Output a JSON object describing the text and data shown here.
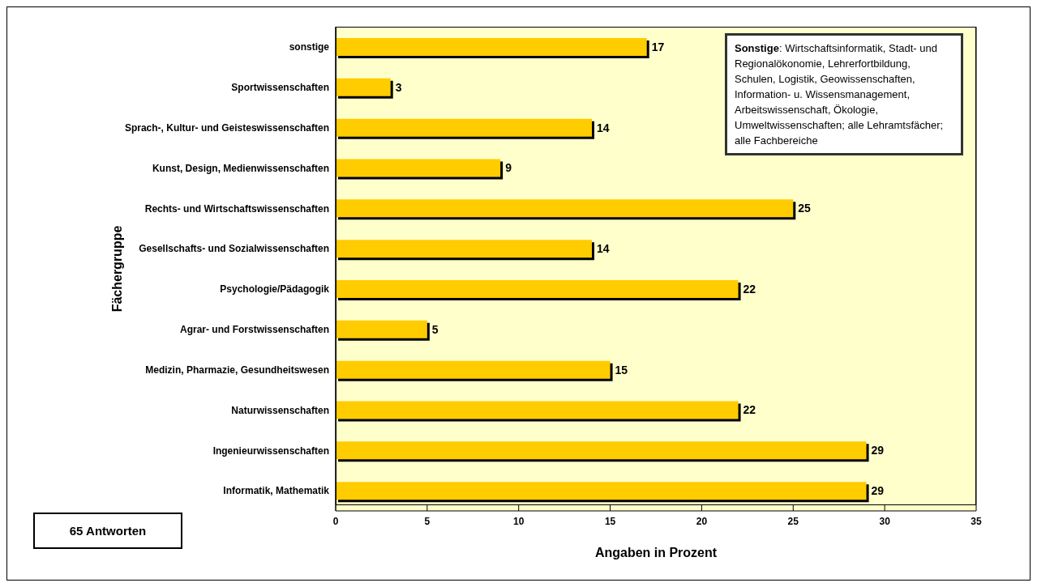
{
  "chart_data": {
    "type": "bar",
    "orientation": "horizontal",
    "xlabel": "Angaben in Prozent",
    "ylabel": "Fächergruppe",
    "categories": [
      "sonstige",
      "Sportwissenschaften",
      "Sprach-, Kultur- und Geisteswissenschaften",
      "Kunst, Design, Medienwissenschaften",
      "Rechts- und Wirtschaftswissenschaften",
      "Gesellschafts- und Sozialwissenschaften",
      "Psychologie/Pädagogik",
      "Agrar- und Forstwissenschaften",
      "Medizin, Pharmazie, Gesundheitswesen",
      "Naturwissenschaften",
      "Ingenieurwissenschaften",
      "Informatik, Mathematik"
    ],
    "values": [
      17,
      3,
      14,
      9,
      25,
      14,
      22,
      5,
      15,
      22,
      29,
      29
    ],
    "color": "#ffcc00",
    "data_labels": true,
    "grid": "x",
    "legend": false,
    "xlim": [
      0,
      35
    ],
    "xticks": [
      0,
      5,
      10,
      15,
      20,
      25,
      30,
      35
    ],
    "annotations": [
      "Sonstige: Wirtschaftsinformatik, Stadt- und Regionalökonomie, Lehrerfortbildung, Schulen, Logistik, Geowissenschaften, Information- u. Wissensmanagement, Arbeitswissenschaft, Ökologie, Umweltwissenschaften; alle Lehramtsfächer; alle Fachbereiche",
      "65 Antworten"
    ]
  }
}
